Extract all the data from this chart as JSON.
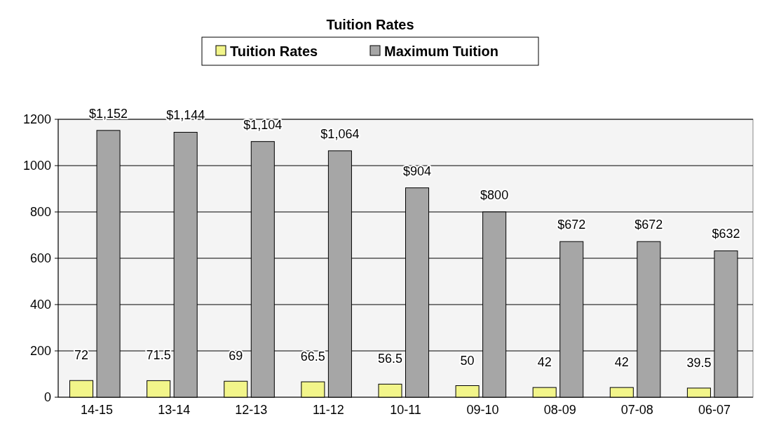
{
  "chart_data": {
    "type": "bar",
    "title": "Tuition Rates",
    "categories": [
      "14-15",
      "13-14",
      "12-13",
      "11-12",
      "10-11",
      "09-10",
      "08-09",
      "07-08",
      "06-07"
    ],
    "series": [
      {
        "name": "Tuition Rates",
        "color": "#f2f58a",
        "values": [
          72,
          71.5,
          69,
          66.5,
          56.5,
          50,
          42,
          42,
          39.5
        ],
        "value_labels": [
          "72",
          "71.5",
          "69",
          "66.5",
          "56.5",
          "50",
          "42",
          "42",
          "39.5"
        ]
      },
      {
        "name": "Maximum Tuition",
        "color": "#a6a6a6",
        "values": [
          1152,
          1144,
          1104,
          1064,
          904,
          800,
          672,
          672,
          632
        ],
        "value_labels": [
          "$1,152",
          "$1,144",
          "$1,104",
          "$1,064",
          "$904",
          "$800",
          "$672",
          "$672",
          "$632"
        ]
      }
    ],
    "ylim": [
      0,
      1200
    ],
    "yticks": [
      0,
      200,
      400,
      600,
      800,
      1000,
      1200
    ],
    "grid": "y",
    "legend": "top"
  }
}
